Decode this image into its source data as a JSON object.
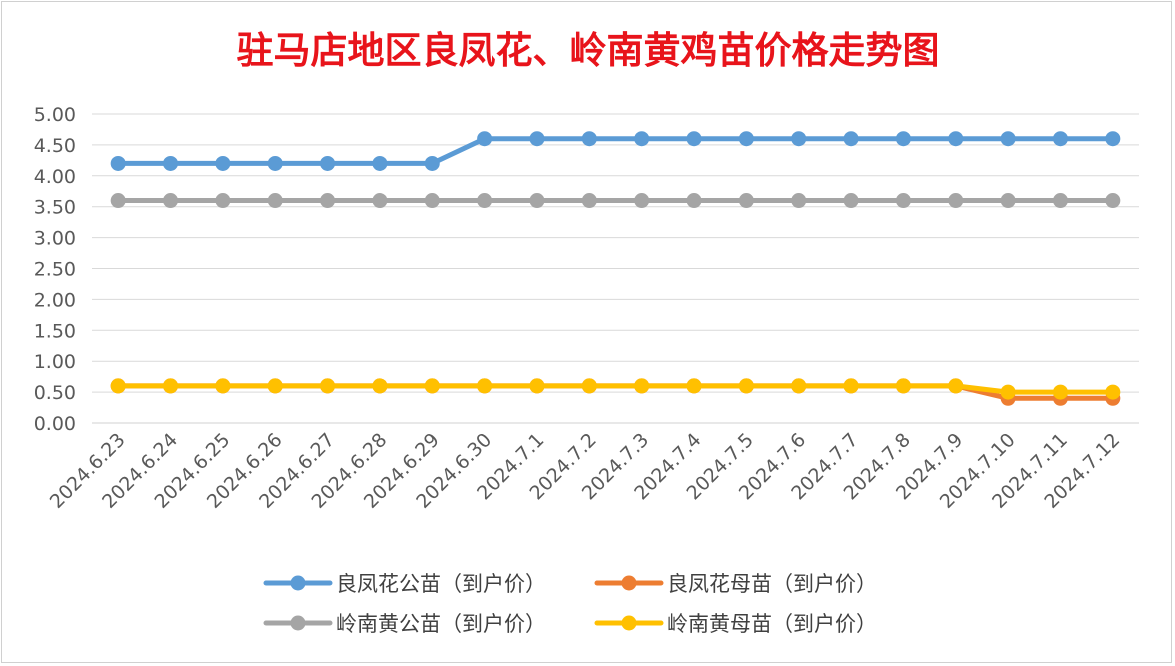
{
  "chart_data": {
    "type": "line",
    "title": "驻马店地区良凤花、岭南黄鸡苗价格走势图",
    "xlabel": "",
    "ylabel": "",
    "ylim": [
      0,
      5
    ],
    "ytick_step": 0.5,
    "yticks": [
      "0.00",
      "0.50",
      "1.00",
      "1.50",
      "2.00",
      "2.50",
      "3.00",
      "3.50",
      "4.00",
      "4.50",
      "5.00"
    ],
    "grid": true,
    "legend_position": "bottom",
    "categories": [
      "2024.6.23",
      "2024.6.24",
      "2024.6.25",
      "2024.6.26",
      "2024.6.27",
      "2024.6.28",
      "2024.6.29",
      "2024.6.30",
      "2024.7.1",
      "2024.7.2",
      "2024.7.3",
      "2024.7.4",
      "2024.7.5",
      "2024.7.6",
      "2024.7.7",
      "2024.7.8",
      "2024.7.9",
      "2024.7.10",
      "2024.7.11",
      "2024.7.12"
    ],
    "series": [
      {
        "name": "良凤花公苗（到户价）",
        "color": "#5b9bd5",
        "values": [
          4.2,
          4.2,
          4.2,
          4.2,
          4.2,
          4.2,
          4.2,
          4.6,
          4.6,
          4.6,
          4.6,
          4.6,
          4.6,
          4.6,
          4.6,
          4.6,
          4.6,
          4.6,
          4.6,
          4.6
        ]
      },
      {
        "name": "良凤花母苗（到户价）",
        "color": "#ed7d31",
        "values": [
          0.6,
          0.6,
          0.6,
          0.6,
          0.6,
          0.6,
          0.6,
          0.6,
          0.6,
          0.6,
          0.6,
          0.6,
          0.6,
          0.6,
          0.6,
          0.6,
          0.6,
          0.4,
          0.4,
          0.4
        ]
      },
      {
        "name": "岭南黄公苗（到户价）",
        "color": "#a5a5a5",
        "values": [
          3.6,
          3.6,
          3.6,
          3.6,
          3.6,
          3.6,
          3.6,
          3.6,
          3.6,
          3.6,
          3.6,
          3.6,
          3.6,
          3.6,
          3.6,
          3.6,
          3.6,
          3.6,
          3.6,
          3.6
        ]
      },
      {
        "name": "岭南黄母苗（到户价）",
        "color": "#ffc000",
        "values": [
          0.6,
          0.6,
          0.6,
          0.6,
          0.6,
          0.6,
          0.6,
          0.6,
          0.6,
          0.6,
          0.6,
          0.6,
          0.6,
          0.6,
          0.6,
          0.6,
          0.6,
          0.5,
          0.5,
          0.5
        ]
      }
    ],
    "draw_order": [
      0,
      2,
      1,
      3
    ],
    "legend_order": [
      0,
      1,
      2,
      3
    ]
  }
}
